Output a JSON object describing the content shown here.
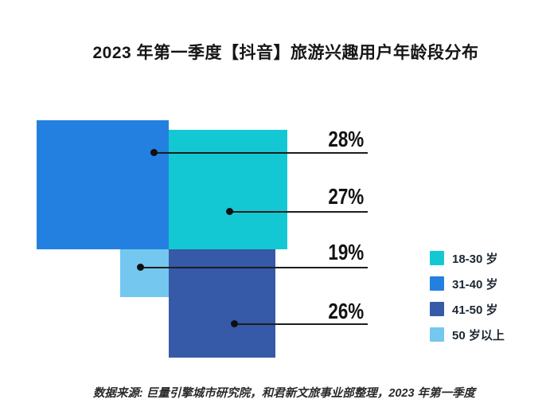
{
  "title": "2023 年第一季度【抖音】旅游兴趣用户年龄段分布",
  "source": "数据来源: 巨量引擎城市研究院，和君新文旅事业部整理，2023 年第一季度",
  "chart_data": {
    "type": "treemap",
    "title": "2023 年第一季度【抖音】旅游兴趣用户年龄段分布",
    "unit": "%",
    "legend_position": "right",
    "series": [
      {
        "name": "18-30 岁",
        "value": 27,
        "color": "#14C8D3"
      },
      {
        "name": "31-40 岁",
        "value": 28,
        "color": "#2380E0"
      },
      {
        "name": "41-50 岁",
        "value": 26,
        "color": "#3659A8"
      },
      {
        "name": "50 岁以上",
        "value": 19,
        "color": "#74C7EF"
      }
    ]
  },
  "labels": {
    "pct_31_40": "28%",
    "pct_18_30": "27%",
    "pct_50_plus": "19%",
    "pct_41_50": "26%"
  },
  "legend": {
    "items": [
      {
        "label": "18-30 岁",
        "color": "#14C8D3"
      },
      {
        "label": "31-40 岁",
        "color": "#2380E0"
      },
      {
        "label": "41-50 岁",
        "color": "#3659A8"
      },
      {
        "label": "50 岁以上",
        "color": "#74C7EF"
      }
    ]
  }
}
